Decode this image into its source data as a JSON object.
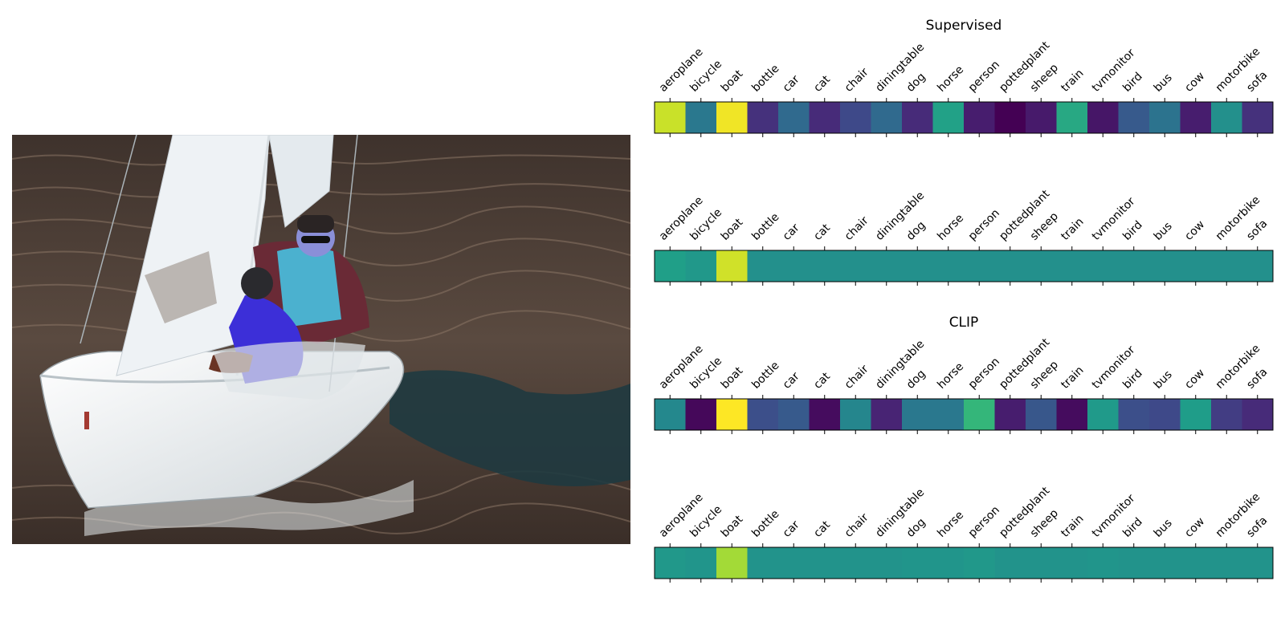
{
  "chart_data": [
    {
      "type": "heatmap",
      "title": "Supervised",
      "categories": [
        "aeroplane",
        "bicycle",
        "boat",
        "bottle",
        "car",
        "cat",
        "chair",
        "diningtable",
        "dog",
        "horse",
        "person",
        "pottedplant",
        "sheep",
        "train",
        "tvmonitor",
        "bird",
        "bus",
        "cow",
        "motorbike",
        "sofa"
      ],
      "values": [
        0.92,
        0.4,
        0.98,
        0.14,
        0.34,
        0.12,
        0.22,
        0.34,
        0.12,
        0.57,
        0.08,
        0.0,
        0.07,
        0.6,
        0.06,
        0.28,
        0.38,
        0.08,
        0.5,
        0.14
      ],
      "colormap": "viridis"
    },
    {
      "type": "heatmap",
      "title": "",
      "categories": [
        "aeroplane",
        "bicycle",
        "boat",
        "bottle",
        "car",
        "cat",
        "chair",
        "diningtable",
        "dog",
        "horse",
        "person",
        "pottedplant",
        "sheep",
        "train",
        "tvmonitor",
        "bird",
        "bus",
        "cow",
        "motorbike",
        "sofa"
      ],
      "values": [
        0.56,
        0.53,
        0.93,
        0.5,
        0.5,
        0.5,
        0.5,
        0.5,
        0.5,
        0.5,
        0.5,
        0.5,
        0.5,
        0.5,
        0.5,
        0.5,
        0.5,
        0.5,
        0.5,
        0.5
      ],
      "colormap": "viridis"
    },
    {
      "type": "heatmap",
      "title": "CLIP",
      "categories": [
        "aeroplane",
        "bicycle",
        "boat",
        "bottle",
        "car",
        "cat",
        "chair",
        "diningtable",
        "dog",
        "horse",
        "person",
        "pottedplant",
        "sheep",
        "train",
        "tvmonitor",
        "bird",
        "bus",
        "cow",
        "motorbike",
        "sofa"
      ],
      "values": [
        0.47,
        0.02,
        1.0,
        0.24,
        0.28,
        0.03,
        0.46,
        0.1,
        0.4,
        0.4,
        0.66,
        0.08,
        0.27,
        0.03,
        0.54,
        0.24,
        0.22,
        0.55,
        0.18,
        0.12
      ],
      "colormap": "viridis"
    },
    {
      "type": "heatmap",
      "title": "",
      "categories": [
        "aeroplane",
        "bicycle",
        "boat",
        "bottle",
        "car",
        "cat",
        "chair",
        "diningtable",
        "dog",
        "horse",
        "person",
        "pottedplant",
        "sheep",
        "train",
        "tvmonitor",
        "bird",
        "bus",
        "cow",
        "motorbike",
        "sofa"
      ],
      "values": [
        0.53,
        0.52,
        0.86,
        0.51,
        0.51,
        0.51,
        0.51,
        0.51,
        0.52,
        0.52,
        0.53,
        0.51,
        0.51,
        0.51,
        0.52,
        0.51,
        0.51,
        0.51,
        0.51,
        0.51
      ],
      "colormap": "viridis"
    }
  ],
  "photo": {
    "colors": {
      "water": "#4a3b33",
      "water_dark": "#2c2521",
      "wave": "#1f3a40",
      "hull": "#eef1f3",
      "sail": "#eef2f5",
      "jacket_blue": "#3c2fd8",
      "jacket_teal": "#4bb1cf",
      "jacket_maroon": "#6a2a36"
    }
  }
}
